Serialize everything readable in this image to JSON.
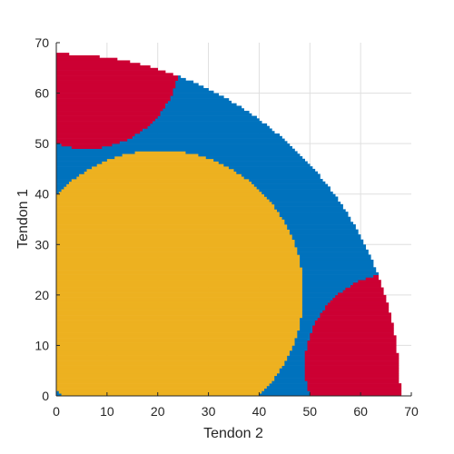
{
  "chart_data": {
    "type": "heatmap",
    "title": "",
    "xlabel": "Tendon 2",
    "ylabel": "Tendon 1",
    "xlim": [
      0,
      70
    ],
    "ylim": [
      0,
      70
    ],
    "xticks": [
      "0",
      "10",
      "20",
      "30",
      "40",
      "50",
      "60",
      "70"
    ],
    "yticks": [
      "0",
      "10",
      "20",
      "30",
      "40",
      "50",
      "60",
      "70"
    ],
    "grid": true,
    "legend": "none",
    "colors": {
      "inner": "#EDB120",
      "middle": "#0072BD",
      "corner": "#CC0033"
    },
    "regions": [
      {
        "class": "middle",
        "description": "quarter disk reachable region, boundary radius",
        "center": [
          0,
          0
        ],
        "radius": 67.8
      },
      {
        "class": "inner",
        "center": [
          20.5,
          20.5
        ],
        "radius": 28.2,
        "x_range": [
          0,
          70
        ],
        "y_range": [
          0,
          70
        ]
      },
      {
        "class": "corner",
        "center": [
          6,
          67.5
        ],
        "radius": 18.5
      },
      {
        "class": "corner",
        "center": [
          67.5,
          6
        ],
        "radius": 18.5
      }
    ],
    "grid_step": 0.5
  }
}
